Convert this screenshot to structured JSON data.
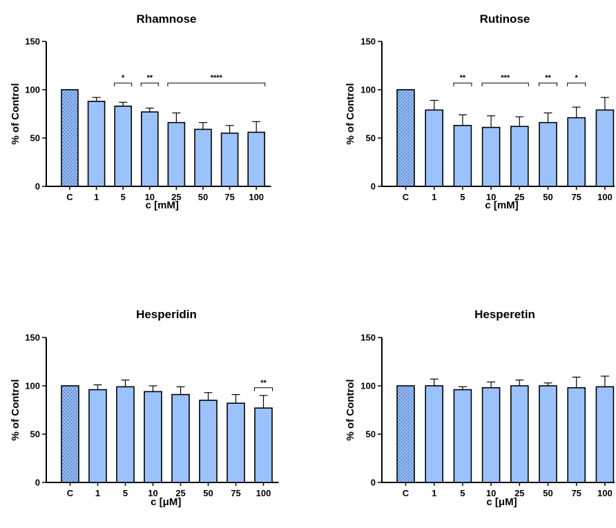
{
  "colors": {
    "bar": "#9cc2fb",
    "control": "#7aa6e8",
    "axis": "#000000"
  },
  "chart_data": [
    {
      "type": "bar",
      "title": "Rhamnose",
      "xlabel": "c [mM]",
      "ylabel": "% of Control",
      "ylim": [
        0,
        150
      ],
      "yticks": [
        "0",
        "50",
        "100",
        "150"
      ],
      "categories": [
        "C",
        "1",
        "5",
        "10",
        "25",
        "50",
        "75",
        "100"
      ],
      "values": [
        100,
        88,
        83,
        77,
        66,
        59,
        55,
        56
      ],
      "errors": [
        0,
        4,
        4,
        4,
        10,
        7,
        8,
        11
      ],
      "significance": [
        {
          "from": "5",
          "to": "5",
          "label": "*"
        },
        {
          "from": "10",
          "to": "10",
          "label": "**"
        },
        {
          "from": "25",
          "to": "100",
          "label": "****"
        }
      ]
    },
    {
      "type": "bar",
      "title": "Rutinose",
      "xlabel": "c [mM]",
      "ylabel": "% of Control",
      "ylim": [
        0,
        150
      ],
      "yticks": [
        "0",
        "50",
        "100",
        "150"
      ],
      "categories": [
        "C",
        "1",
        "5",
        "10",
        "25",
        "50",
        "75",
        "100"
      ],
      "values": [
        100,
        79,
        63,
        61,
        62,
        66,
        71,
        79
      ],
      "errors": [
        0,
        10,
        11,
        12,
        10,
        10,
        11,
        13
      ],
      "significance": [
        {
          "from": "5",
          "to": "5",
          "label": "**"
        },
        {
          "from": "10",
          "to": "25",
          "label": "***"
        },
        {
          "from": "50",
          "to": "50",
          "label": "**"
        },
        {
          "from": "75",
          "to": "75",
          "label": "*"
        }
      ]
    },
    {
      "type": "bar",
      "title": "Hesperidin",
      "xlabel": "c [μM]",
      "ylabel": "% of Control",
      "ylim": [
        0,
        150
      ],
      "yticks": [
        "0",
        "50",
        "100",
        "150"
      ],
      "categories": [
        "C",
        "1",
        "5",
        "10",
        "25",
        "50",
        "75",
        "100"
      ],
      "values": [
        100,
        96,
        99,
        94,
        91,
        85,
        82,
        77
      ],
      "errors": [
        0,
        5,
        7,
        6,
        8,
        8,
        9,
        13
      ],
      "significance": [
        {
          "from": "100",
          "to": "100",
          "label": "**"
        }
      ]
    },
    {
      "type": "bar",
      "title": "Hesperetin",
      "xlabel": "c [μM]",
      "ylabel": "% of Control",
      "ylim": [
        0,
        150
      ],
      "yticks": [
        "0",
        "50",
        "100",
        "150"
      ],
      "categories": [
        "C",
        "1",
        "5",
        "10",
        "25",
        "50",
        "75",
        "100"
      ],
      "values": [
        100,
        100,
        96,
        98,
        100,
        100,
        98,
        99
      ],
      "errors": [
        0,
        7,
        3,
        6,
        6,
        3,
        11,
        11
      ],
      "significance": []
    }
  ]
}
